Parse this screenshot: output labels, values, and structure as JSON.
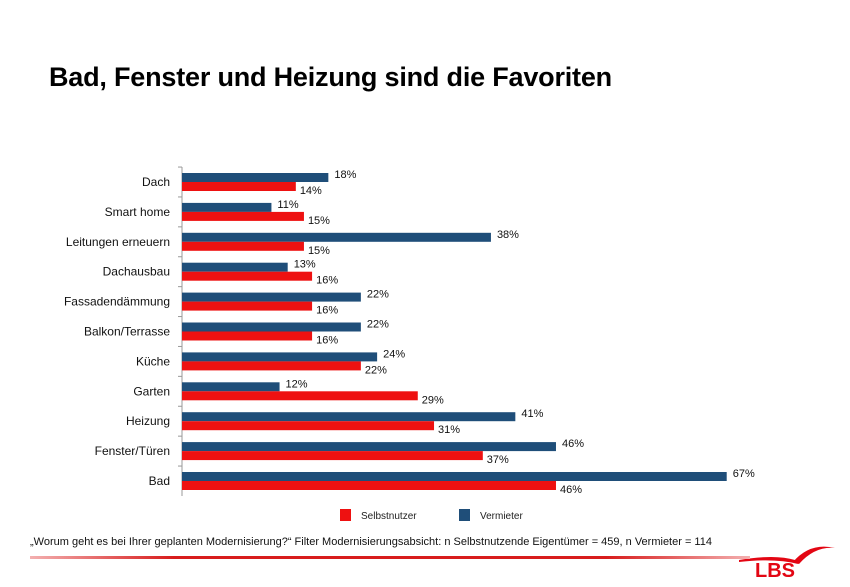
{
  "title": "Bad, Fenster und Heizung sind die Favoriten",
  "footnote": "„Worum geht es bei Ihrer geplanten Modernisierung?“ Filter Modernisierungsabsicht: n Selbstnutzende Eigentümer = 459, n Vermieter = 114",
  "logo_text": "LBS",
  "chart_data": {
    "type": "bar",
    "orientation": "horizontal",
    "categories": [
      "Dach",
      "Smart home",
      "Leitungen erneuern",
      "Dachausbau",
      "Fassadendämmung",
      "Balkon/Terrasse",
      "Küche",
      "Garten",
      "Heizung",
      "Fenster/Türen",
      "Bad"
    ],
    "series": [
      {
        "name": "Vermieter",
        "color": "#1f4e79",
        "values": [
          18,
          11,
          38,
          13,
          22,
          22,
          24,
          12,
          41,
          46,
          67
        ],
        "labels": [
          "18%",
          "11%",
          "38%",
          "13%",
          "22%",
          "22%",
          "24%",
          "12%",
          "41%",
          "46%",
          "67%"
        ]
      },
      {
        "name": "Selbstnutzer",
        "color": "#ee1111",
        "values": [
          14,
          15,
          15,
          16,
          16,
          16,
          22,
          29,
          31,
          37,
          46
        ],
        "labels": [
          "14%",
          "15%",
          "15%",
          "16%",
          "16%",
          "16%",
          "22%",
          "29%",
          "31%",
          "37%",
          "46%"
        ]
      }
    ],
    "legend_order": [
      "Selbstnutzer",
      "Vermieter"
    ],
    "legend_placement": "bottom",
    "unit": "%",
    "xlim": [
      0,
      70
    ],
    "grid": false
  }
}
